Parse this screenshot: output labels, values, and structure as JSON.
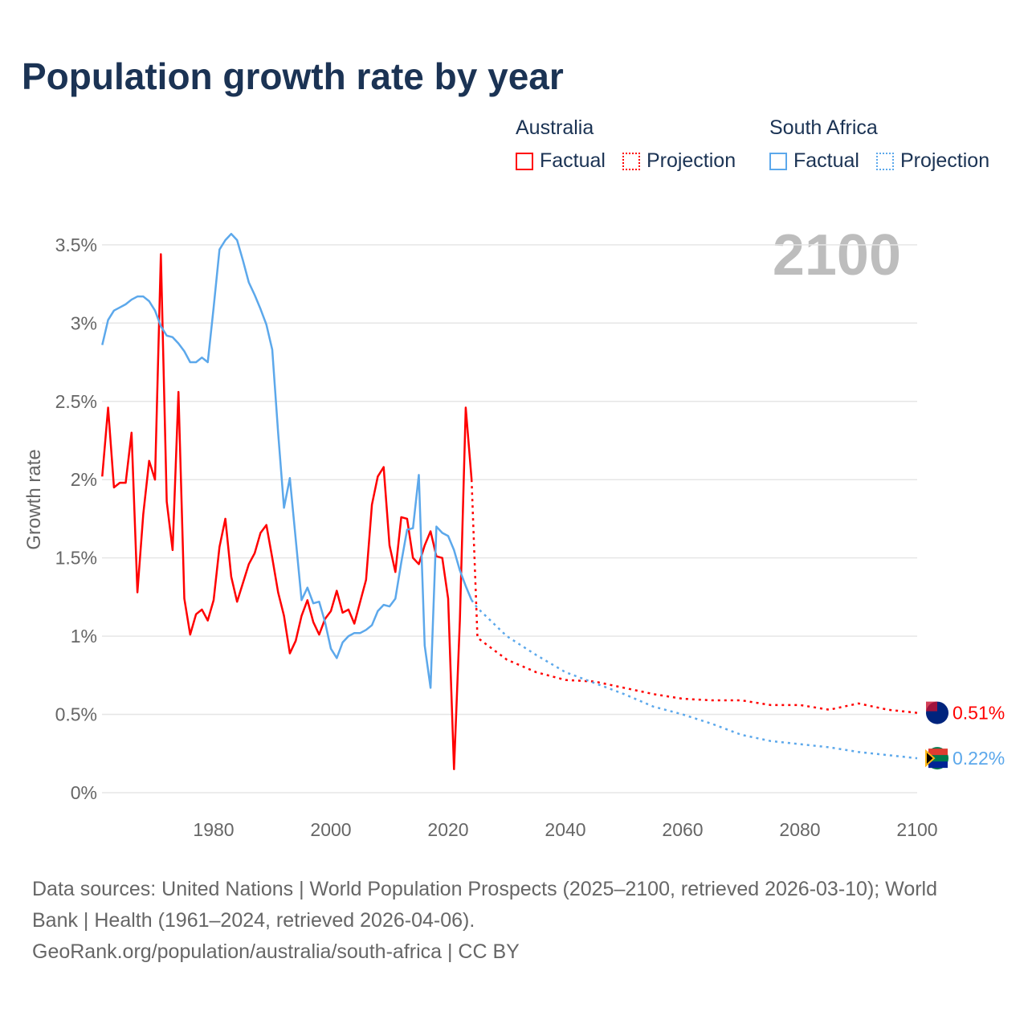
{
  "title": "Population growth rate by year",
  "legend": {
    "groups": [
      {
        "name": "Australia",
        "color": "#ff0000",
        "factual": "Factual",
        "projection": "Projection"
      },
      {
        "name": "South Africa",
        "color": "#5ca8eb",
        "factual": "Factual",
        "projection": "Projection"
      }
    ]
  },
  "year_label": "2100",
  "footer": {
    "sources": "Data sources: United Nations | World Population Prospects (2025–2100, retrieved 2026-03-10); World Bank | Health (1961–2024, retrieved 2026-04-06).",
    "link": "GeoRank.org/population/australia/south-africa | CC BY"
  },
  "chart_data": {
    "type": "line",
    "title": "Population growth rate by year",
    "xlabel": "",
    "ylabel": "Growth rate",
    "xlim": [
      1961,
      2100
    ],
    "ylim": [
      0,
      3.6
    ],
    "xticks": [
      1980,
      2000,
      2020,
      2040,
      2060,
      2080,
      2100
    ],
    "yticks": [
      0,
      0.5,
      1,
      1.5,
      2,
      2.5,
      3,
      3.5
    ],
    "ytick_labels": [
      "0%",
      "0.5%",
      "1%",
      "1.5%",
      "2%",
      "2.5%",
      "3%",
      "3.5%"
    ],
    "grid": true,
    "series": [
      {
        "name": "Australia",
        "color": "#ff0000",
        "end_label": "0.51%",
        "factual": {
          "x_start": 1961,
          "values": [
            2.02,
            2.46,
            1.95,
            1.98,
            1.98,
            2.3,
            1.28,
            1.78,
            2.12,
            2.0,
            3.44,
            1.86,
            1.55,
            2.56,
            1.24,
            1.01,
            1.14,
            1.17,
            1.1,
            1.23,
            1.57,
            1.75,
            1.38,
            1.22,
            1.34,
            1.46,
            1.53,
            1.66,
            1.71,
            1.5,
            1.28,
            1.13,
            0.89,
            0.97,
            1.13,
            1.23,
            1.09,
            1.01,
            1.11,
            1.16,
            1.29,
            1.15,
            1.17,
            1.08,
            1.22,
            1.36,
            1.84,
            2.02,
            2.08,
            1.58,
            1.41,
            1.76,
            1.75,
            1.5,
            1.46,
            1.58,
            1.67,
            1.51,
            1.5,
            1.24,
            0.15,
            1.1,
            2.46,
            2.0
          ]
        },
        "projection": {
          "x": [
            2024,
            2025,
            2030,
            2035,
            2040,
            2045,
            2050,
            2055,
            2060,
            2065,
            2070,
            2075,
            2080,
            2085,
            2090,
            2095,
            2100
          ],
          "values": [
            2.0,
            0.99,
            0.85,
            0.77,
            0.72,
            0.71,
            0.67,
            0.63,
            0.6,
            0.59,
            0.59,
            0.56,
            0.56,
            0.53,
            0.57,
            0.53,
            0.51
          ]
        }
      },
      {
        "name": "South Africa",
        "color": "#5ca8eb",
        "end_label": "0.22%",
        "factual": {
          "x_start": 1961,
          "values": [
            2.86,
            3.02,
            3.08,
            3.1,
            3.12,
            3.15,
            3.17,
            3.17,
            3.14,
            3.08,
            2.98,
            2.92,
            2.91,
            2.87,
            2.82,
            2.75,
            2.75,
            2.78,
            2.75,
            3.1,
            3.47,
            3.53,
            3.57,
            3.53,
            3.4,
            3.26,
            3.18,
            3.09,
            2.99,
            2.83,
            2.3,
            1.82,
            2.01,
            1.62,
            1.23,
            1.31,
            1.21,
            1.22,
            1.09,
            0.92,
            0.86,
            0.96,
            1.0,
            1.02,
            1.02,
            1.04,
            1.07,
            1.16,
            1.2,
            1.19,
            1.24,
            1.47,
            1.68,
            1.69,
            2.03,
            0.94,
            0.67,
            1.7,
            1.66,
            1.64,
            1.55,
            1.42,
            1.32,
            1.23
          ]
        },
        "projection": {
          "x": [
            2024,
            2025,
            2030,
            2035,
            2040,
            2045,
            2050,
            2055,
            2060,
            2065,
            2070,
            2075,
            2080,
            2085,
            2090,
            2095,
            2100
          ],
          "values": [
            1.23,
            1.18,
            1.0,
            0.88,
            0.77,
            0.7,
            0.63,
            0.55,
            0.5,
            0.44,
            0.37,
            0.33,
            0.31,
            0.29,
            0.26,
            0.24,
            0.22
          ]
        }
      }
    ]
  }
}
